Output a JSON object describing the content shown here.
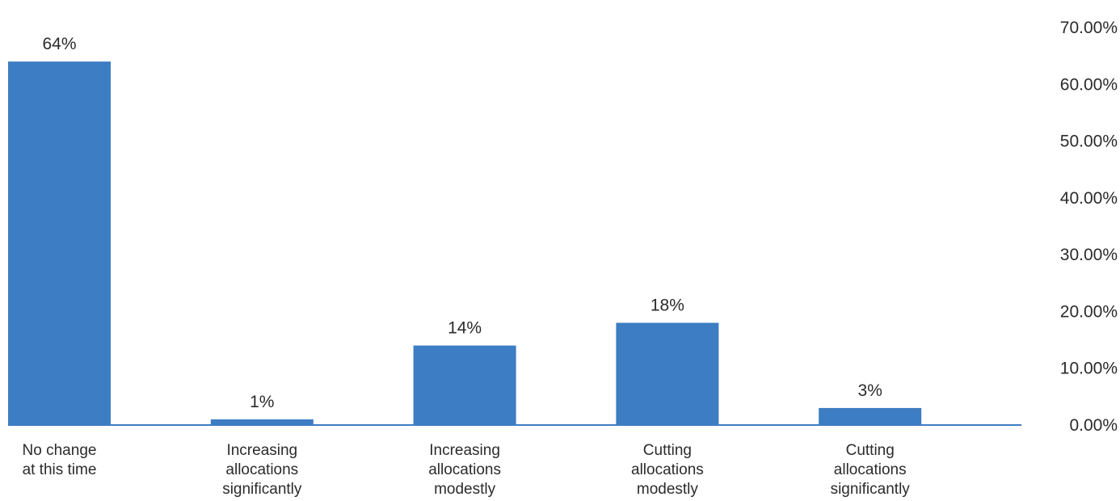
{
  "chart_data": {
    "type": "bar",
    "categories": [
      [
        "No change",
        "at this time"
      ],
      [
        "Increasing",
        "allocations",
        "significantly"
      ],
      [
        "Increasing",
        "allocations",
        "modestly"
      ],
      [
        "Cutting",
        "allocations",
        "modestly"
      ],
      [
        "Cutting",
        "allocations",
        "significantly"
      ]
    ],
    "values": [
      64,
      1,
      14,
      18,
      3
    ],
    "data_labels": [
      "64%",
      "1%",
      "14%",
      "18%",
      "3%"
    ],
    "y_ticks": [
      "0.00%",
      "10.00%",
      "20.00%",
      "30.00%",
      "40.00%",
      "50.00%",
      "60.00%",
      "70.00%"
    ],
    "ylim": [
      0,
      70
    ],
    "y_axis_position": "right",
    "grid": false,
    "bar_color": "#3d7dc3",
    "baseline_color": "#3d7dc3"
  }
}
